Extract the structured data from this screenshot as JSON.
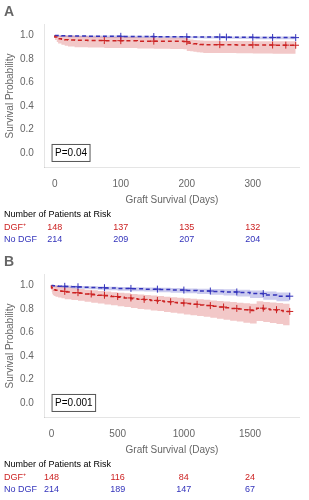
{
  "chart_data": [
    {
      "type": "step",
      "title": "A",
      "xlabel": "Graft Survival (Days)",
      "ylabel": "Survival Probability",
      "xlim": [
        -15,
        370
      ],
      "ylim": [
        -0.12,
        1.09
      ],
      "xticks": [
        0,
        100,
        200,
        300
      ],
      "yticks": [
        {
          "value": 0.0,
          "label": "0.0"
        },
        0.2,
        0.4,
        0.6,
        0.8,
        {
          "value": 1.0,
          "label": "1.0"
        }
      ],
      "grid": false,
      "annotation": "P=0.04",
      "risk_table": {
        "title": "Number of Patients at Risk",
        "x": [
          0,
          100,
          200,
          300
        ]
      },
      "series": [
        {
          "name": "DGF⁺",
          "color": "#cc2222",
          "line_style": "dashed",
          "marker": "plus",
          "x": [
            0,
            3,
            5,
            10,
            15,
            20,
            30,
            50,
            75,
            100,
            125,
            150,
            175,
            195,
            200,
            205,
            210,
            215,
            220,
            225,
            250,
            275,
            300,
            330,
            350,
            365
          ],
          "values": [
            1.0,
            0.986,
            0.979,
            0.972,
            0.967,
            0.963,
            0.96,
            0.958,
            0.956,
            0.955,
            0.954,
            0.951,
            0.95,
            0.949,
            0.947,
            0.935,
            0.932,
            0.928,
            0.926,
            0.923,
            0.921,
            0.92,
            0.919,
            0.918,
            0.917,
            0.916
          ],
          "ci_upper": [
            1.0,
            1.0,
            1.0,
            1.0,
            1.0,
            1.0,
            0.999,
            0.995,
            0.99,
            0.987,
            0.986,
            0.982,
            0.98,
            0.979,
            0.977,
            0.967,
            0.964,
            0.96,
            0.958,
            0.956,
            0.954,
            0.953,
            0.952,
            0.951,
            0.95,
            0.95
          ],
          "ci_lower": [
            1.0,
            0.96,
            0.944,
            0.93,
            0.92,
            0.912,
            0.906,
            0.9,
            0.896,
            0.893,
            0.892,
            0.888,
            0.886,
            0.884,
            0.882,
            0.868,
            0.864,
            0.86,
            0.857,
            0.854,
            0.851,
            0.849,
            0.847,
            0.845,
            0.844,
            0.843
          ],
          "censor_x": [
            75,
            100,
            150,
            200,
            250,
            300,
            330,
            350,
            365
          ],
          "censor_values": [
            0.956,
            0.955,
            0.951,
            0.947,
            0.921,
            0.919,
            0.918,
            0.917,
            0.916
          ],
          "at_risk": [
            148,
            137,
            135,
            132
          ]
        },
        {
          "name": "No DGF",
          "color": "#3333bb",
          "line_style": "dashed",
          "marker": "plus",
          "x": [
            0,
            5,
            10,
            20,
            30,
            50,
            75,
            100,
            125,
            150,
            175,
            200,
            225,
            250,
            260,
            275,
            300,
            330,
            365
          ],
          "values": [
            1.0,
            0.998,
            0.997,
            0.996,
            0.995,
            0.994,
            0.993,
            0.992,
            0.991,
            0.99,
            0.989,
            0.988,
            0.987,
            0.986,
            0.985,
            0.984,
            0.983,
            0.982,
            0.981
          ],
          "ci_upper": [
            1.0,
            1.0,
            1.0,
            1.0,
            1.0,
            1.0,
            0.999,
            0.998,
            0.997,
            0.996,
            0.995,
            0.994,
            0.993,
            0.992,
            0.991,
            0.99,
            0.99,
            0.99,
            0.99
          ],
          "ci_lower": [
            1.0,
            0.991,
            0.989,
            0.987,
            0.985,
            0.983,
            0.981,
            0.98,
            0.979,
            0.978,
            0.977,
            0.976,
            0.975,
            0.974,
            0.973,
            0.972,
            0.97,
            0.968,
            0.966
          ],
          "censor_x": [
            100,
            150,
            200,
            250,
            260,
            300,
            330,
            365
          ],
          "censor_values": [
            0.992,
            0.99,
            0.988,
            0.986,
            0.985,
            0.983,
            0.982,
            0.981
          ],
          "at_risk": [
            214,
            209,
            207,
            204
          ]
        }
      ]
    },
    {
      "type": "step",
      "title": "B",
      "xlabel": "Graft Survival (Days)",
      "ylabel": "Survival Probability",
      "xlim": [
        -50,
        1870
      ],
      "ylim": [
        -0.12,
        1.09
      ],
      "xticks": [
        0,
        500,
        1000,
        1500
      ],
      "yticks": [
        {
          "value": 0.0,
          "label": "0.0"
        },
        0.2,
        0.4,
        0.6,
        0.8,
        {
          "value": 1.0,
          "label": "1.0"
        }
      ],
      "grid": false,
      "annotation": "P=0.001",
      "risk_table": {
        "title": "Number of Patients at Risk",
        "x": [
          0,
          500,
          1000,
          1500
        ]
      },
      "series": [
        {
          "name": "DGF⁺",
          "color": "#cc2222",
          "line_style": "dashed",
          "marker": "plus",
          "x": [
            0,
            5,
            10,
            20,
            30,
            50,
            75,
            100,
            150,
            200,
            250,
            300,
            350,
            400,
            450,
            500,
            550,
            600,
            650,
            700,
            750,
            800,
            850,
            900,
            950,
            1000,
            1050,
            1100,
            1150,
            1200,
            1250,
            1300,
            1350,
            1400,
            1450,
            1500,
            1550,
            1600,
            1650,
            1700,
            1750,
            1800
          ],
          "values": [
            1.0,
            0.98,
            0.973,
            0.966,
            0.962,
            0.958,
            0.953,
            0.949,
            0.943,
            0.938,
            0.933,
            0.927,
            0.921,
            0.916,
            0.911,
            0.905,
            0.899,
            0.893,
            0.887,
            0.881,
            0.877,
            0.872,
            0.867,
            0.861,
            0.855,
            0.85,
            0.845,
            0.839,
            0.834,
            0.828,
            0.822,
            0.816,
            0.81,
            0.804,
            0.798,
            0.792,
            0.786,
            0.806,
            0.8,
            0.793,
            0.787,
            0.778
          ],
          "ci_upper": [
            1.0,
            1.0,
            1.0,
            1.0,
            1.0,
            0.998,
            0.994,
            0.989,
            0.982,
            0.976,
            0.97,
            0.963,
            0.958,
            0.952,
            0.947,
            0.942,
            0.937,
            0.932,
            0.927,
            0.922,
            0.918,
            0.914,
            0.909,
            0.904,
            0.899,
            0.895,
            0.891,
            0.886,
            0.882,
            0.877,
            0.872,
            0.867,
            0.862,
            0.858,
            0.853,
            0.848,
            0.843,
            0.864,
            0.859,
            0.854,
            0.849,
            0.843
          ],
          "ci_lower": [
            1.0,
            0.944,
            0.928,
            0.916,
            0.91,
            0.904,
            0.896,
            0.89,
            0.882,
            0.876,
            0.869,
            0.86,
            0.853,
            0.846,
            0.838,
            0.831,
            0.823,
            0.815,
            0.807,
            0.8,
            0.794,
            0.787,
            0.781,
            0.774,
            0.767,
            0.76,
            0.753,
            0.746,
            0.739,
            0.732,
            0.724,
            0.716,
            0.708,
            0.7,
            0.692,
            0.683,
            0.675,
            0.696,
            0.688,
            0.68,
            0.672,
            0.66
          ],
          "censor_x": [
            100,
            200,
            300,
            400,
            500,
            600,
            700,
            800,
            900,
            1000,
            1100,
            1200,
            1300,
            1400,
            1500,
            1600,
            1700,
            1800
          ],
          "censor_values": [
            0.949,
            0.938,
            0.927,
            0.916,
            0.905,
            0.893,
            0.881,
            0.872,
            0.861,
            0.85,
            0.839,
            0.828,
            0.816,
            0.804,
            0.792,
            0.806,
            0.793,
            0.778
          ],
          "at_risk": [
            148,
            116,
            84,
            24
          ]
        },
        {
          "name": "No DGF",
          "color": "#3333bb",
          "line_style": "dashed",
          "marker": "plus",
          "x": [
            0,
            5,
            10,
            20,
            30,
            50,
            75,
            100,
            150,
            200,
            250,
            300,
            350,
            400,
            500,
            600,
            700,
            800,
            900,
            1000,
            1100,
            1200,
            1300,
            1400,
            1500,
            1600,
            1700,
            1800
          ],
          "values": [
            1.0,
            0.999,
            0.998,
            0.997,
            0.996,
            0.994,
            0.993,
            0.992,
            0.99,
            0.988,
            0.986,
            0.984,
            0.982,
            0.98,
            0.977,
            0.974,
            0.971,
            0.968,
            0.964,
            0.96,
            0.956,
            0.952,
            0.948,
            0.944,
            0.94,
            0.93,
            0.918,
            0.908
          ],
          "ci_upper": [
            1.0,
            1.0,
            1.0,
            1.0,
            1.0,
            1.0,
            1.0,
            0.999,
            0.998,
            0.996,
            0.995,
            0.993,
            0.992,
            0.99,
            0.988,
            0.986,
            0.984,
            0.982,
            0.979,
            0.977,
            0.974,
            0.972,
            0.969,
            0.966,
            0.963,
            0.956,
            0.947,
            0.939
          ],
          "ci_lower": [
            1.0,
            0.994,
            0.991,
            0.989,
            0.988,
            0.985,
            0.982,
            0.98,
            0.977,
            0.974,
            0.972,
            0.969,
            0.966,
            0.963,
            0.959,
            0.955,
            0.951,
            0.947,
            0.942,
            0.937,
            0.932,
            0.926,
            0.92,
            0.913,
            0.906,
            0.893,
            0.877,
            0.865
          ],
          "censor_x": [
            100,
            200,
            400,
            600,
            800,
            1000,
            1200,
            1400,
            1600,
            1800
          ],
          "censor_values": [
            0.992,
            0.988,
            0.98,
            0.974,
            0.968,
            0.96,
            0.952,
            0.944,
            0.93,
            0.908
          ],
          "at_risk": [
            214,
            189,
            147,
            67
          ]
        }
      ]
    }
  ]
}
